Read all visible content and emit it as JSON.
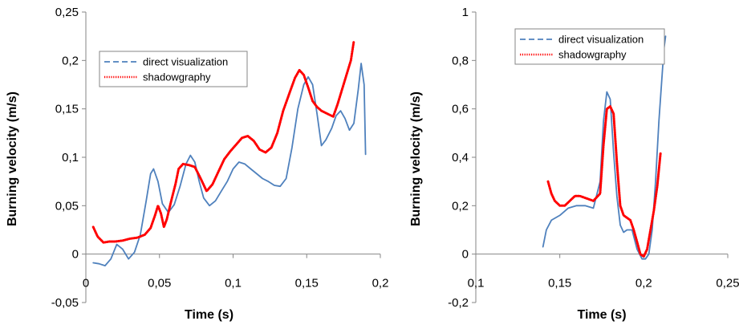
{
  "colors": {
    "direct": "#4f81bd",
    "shadow": "#ff0000",
    "axis": "#868686",
    "legend_border": "#868686"
  },
  "chart_data": [
    {
      "type": "line",
      "title": "",
      "xlabel": "Time (s)",
      "ylabel": "Burning velocity (m/s)",
      "xlim": [
        0,
        0.2
      ],
      "ylim": [
        -0.05,
        0.25
      ],
      "xticks": [
        0,
        0.05,
        0.1,
        0.15,
        0.2
      ],
      "xtick_labels": [
        "0",
        "0,05",
        "0,1",
        "0,15",
        "0,2"
      ],
      "yticks": [
        -0.05,
        0,
        0.05,
        0.1,
        0.15,
        0.2,
        0.25
      ],
      "ytick_labels": [
        "-0,05",
        "0",
        "0,05",
        "0,1",
        "0,15",
        "0,2",
        "0,25"
      ],
      "grid": false,
      "legend_position": "top-left",
      "legend": [
        "direct visualization",
        "shadowgraphy"
      ],
      "series": [
        {
          "name": "direct visualization",
          "style": "solid",
          "x": [
            0.005,
            0.009,
            0.013,
            0.017,
            0.021,
            0.025,
            0.029,
            0.033,
            0.037,
            0.041,
            0.044,
            0.046,
            0.049,
            0.052,
            0.056,
            0.06,
            0.064,
            0.068,
            0.071,
            0.074,
            0.077,
            0.08,
            0.084,
            0.088,
            0.092,
            0.096,
            0.1,
            0.104,
            0.108,
            0.112,
            0.116,
            0.12,
            0.124,
            0.128,
            0.132,
            0.136,
            0.14,
            0.144,
            0.148,
            0.151,
            0.154,
            0.157,
            0.16,
            0.163,
            0.167,
            0.17,
            0.173,
            0.176,
            0.179,
            0.182,
            0.185,
            0.187,
            0.189,
            0.19
          ],
          "y": [
            -0.009,
            -0.01,
            -0.012,
            -0.005,
            0.01,
            0.005,
            -0.005,
            0.002,
            0.02,
            0.055,
            0.083,
            0.088,
            0.075,
            0.052,
            0.043,
            0.051,
            0.07,
            0.093,
            0.102,
            0.095,
            0.075,
            0.058,
            0.05,
            0.055,
            0.065,
            0.075,
            0.088,
            0.095,
            0.093,
            0.088,
            0.083,
            0.078,
            0.075,
            0.071,
            0.07,
            0.078,
            0.11,
            0.15,
            0.175,
            0.183,
            0.175,
            0.145,
            0.112,
            0.118,
            0.13,
            0.143,
            0.148,
            0.14,
            0.128,
            0.135,
            0.17,
            0.197,
            0.175,
            0.103
          ]
        },
        {
          "name": "shadowgraphy",
          "style": "dotted",
          "x": [
            0.005,
            0.008,
            0.012,
            0.016,
            0.02,
            0.025,
            0.03,
            0.035,
            0.04,
            0.044,
            0.047,
            0.049,
            0.051,
            0.053,
            0.055,
            0.058,
            0.061,
            0.063,
            0.066,
            0.07,
            0.074,
            0.078,
            0.082,
            0.086,
            0.09,
            0.094,
            0.098,
            0.102,
            0.106,
            0.11,
            0.114,
            0.118,
            0.122,
            0.126,
            0.13,
            0.134,
            0.138,
            0.142,
            0.145,
            0.148,
            0.151,
            0.154,
            0.157,
            0.16,
            0.164,
            0.168,
            0.171,
            0.174,
            0.177,
            0.18,
            0.182
          ],
          "y": [
            0.028,
            0.018,
            0.012,
            0.013,
            0.013,
            0.014,
            0.016,
            0.017,
            0.02,
            0.027,
            0.04,
            0.05,
            0.042,
            0.028,
            0.036,
            0.055,
            0.073,
            0.088,
            0.093,
            0.092,
            0.09,
            0.078,
            0.065,
            0.072,
            0.085,
            0.098,
            0.106,
            0.113,
            0.12,
            0.122,
            0.117,
            0.108,
            0.105,
            0.11,
            0.125,
            0.148,
            0.165,
            0.182,
            0.19,
            0.185,
            0.172,
            0.158,
            0.152,
            0.148,
            0.145,
            0.142,
            0.155,
            0.17,
            0.185,
            0.2,
            0.22
          ]
        }
      ]
    },
    {
      "type": "line",
      "title": "",
      "xlabel": "Time (s)",
      "ylabel": "Burning velocity (m/s)",
      "xlim": [
        0.1,
        0.25
      ],
      "ylim": [
        -0.2,
        1
      ],
      "xticks": [
        0.1,
        0.15,
        0.2,
        0.25
      ],
      "xtick_labels": [
        "0,1",
        "0,15",
        "0,2",
        "0,25"
      ],
      "yticks": [
        -0.2,
        0,
        0.2,
        0.4,
        0.6,
        0.8,
        1
      ],
      "ytick_labels": [
        "-0,2",
        "0",
        "0,2",
        "0,4",
        "0,6",
        "0,8",
        "1"
      ],
      "grid": false,
      "legend_position": "top-left",
      "legend": [
        "direct visualization",
        "shadowgraphy"
      ],
      "series": [
        {
          "name": "direct visualization",
          "style": "solid",
          "x": [
            0.14,
            0.142,
            0.145,
            0.15,
            0.155,
            0.16,
            0.165,
            0.17,
            0.174,
            0.176,
            0.178,
            0.18,
            0.182,
            0.184,
            0.186,
            0.188,
            0.19,
            0.193,
            0.196,
            0.199,
            0.201,
            0.203,
            0.205,
            0.207,
            0.209,
            0.211,
            0.212,
            0.213
          ],
          "y": [
            0.03,
            0.1,
            0.14,
            0.16,
            0.19,
            0.2,
            0.2,
            0.19,
            0.3,
            0.55,
            0.67,
            0.64,
            0.42,
            0.24,
            0.12,
            0.09,
            0.1,
            0.1,
            0.02,
            -0.02,
            -0.02,
            0.0,
            0.1,
            0.3,
            0.55,
            0.75,
            0.85,
            0.9
          ]
        },
        {
          "name": "shadowgraphy",
          "style": "dotted",
          "x": [
            0.143,
            0.145,
            0.147,
            0.15,
            0.153,
            0.156,
            0.159,
            0.162,
            0.166,
            0.17,
            0.174,
            0.176,
            0.178,
            0.18,
            0.182,
            0.184,
            0.186,
            0.188,
            0.19,
            0.192,
            0.194,
            0.196,
            0.198,
            0.2,
            0.202,
            0.204,
            0.206,
            0.208,
            0.21
          ],
          "y": [
            0.3,
            0.25,
            0.22,
            0.2,
            0.2,
            0.22,
            0.24,
            0.24,
            0.23,
            0.22,
            0.25,
            0.45,
            0.6,
            0.61,
            0.58,
            0.38,
            0.2,
            0.16,
            0.15,
            0.14,
            0.1,
            0.05,
            0.0,
            -0.01,
            0.02,
            0.1,
            0.18,
            0.28,
            0.42
          ]
        }
      ]
    }
  ]
}
